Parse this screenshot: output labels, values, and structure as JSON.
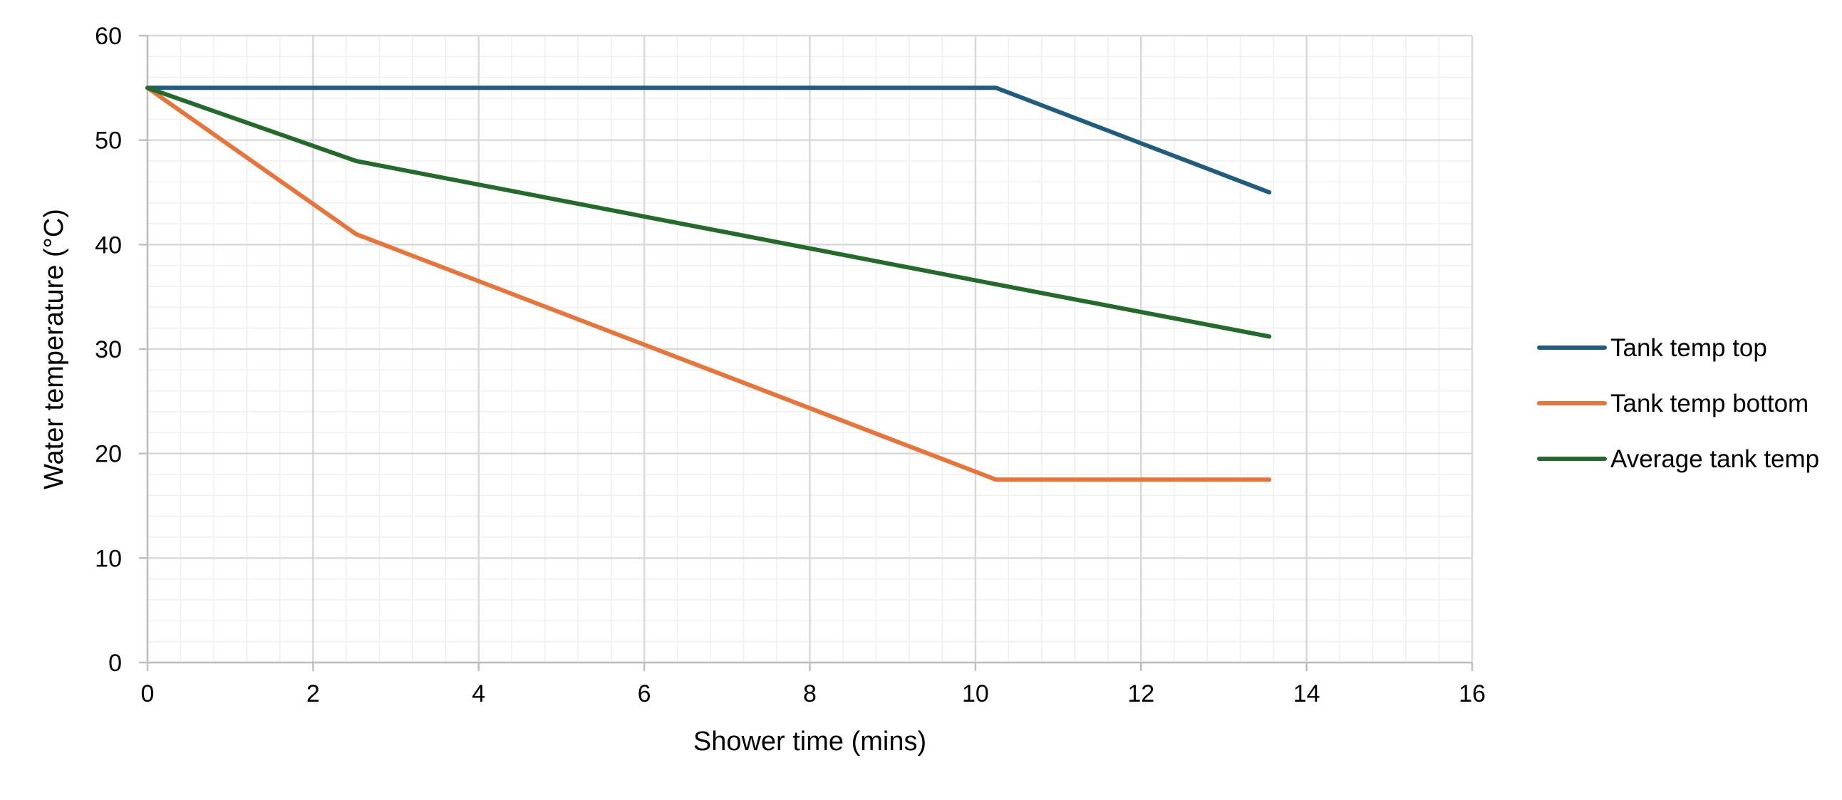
{
  "chart_data": {
    "type": "line",
    "title": "",
    "xlabel": "Shower time (mins)",
    "ylabel": "Water temperature (°C)",
    "xlim": [
      0,
      16
    ],
    "ylim": [
      0,
      60
    ],
    "x_ticks": [
      0,
      2,
      4,
      6,
      8,
      10,
      12,
      14,
      16
    ],
    "y_ticks": [
      0,
      10,
      20,
      30,
      40,
      50,
      60
    ],
    "x_tick_labels": [
      "0",
      "2",
      "4",
      "6",
      "8",
      "10",
      "12",
      "14",
      "16"
    ],
    "y_tick_labels": [
      "0",
      "10",
      "20",
      "30",
      "40",
      "50",
      "60"
    ],
    "grid": true,
    "minor_grid": true,
    "legend_position": "right",
    "series": [
      {
        "name": "Tank temp top",
        "color": "#1f5c7f",
        "x": [
          0,
          10.25,
          13.55
        ],
        "y": [
          55,
          55,
          45
        ]
      },
      {
        "name": "Tank temp bottom",
        "color": "#e8743a",
        "x": [
          0,
          2.52,
          10.25,
          13.55
        ],
        "y": [
          55,
          41,
          17.5,
          17.5
        ]
      },
      {
        "name": "Average tank temp",
        "color": "#236b2b",
        "x": [
          0,
          2.52,
          10.25,
          13.55
        ],
        "y": [
          55,
          48,
          36.2,
          31.2
        ]
      }
    ]
  }
}
